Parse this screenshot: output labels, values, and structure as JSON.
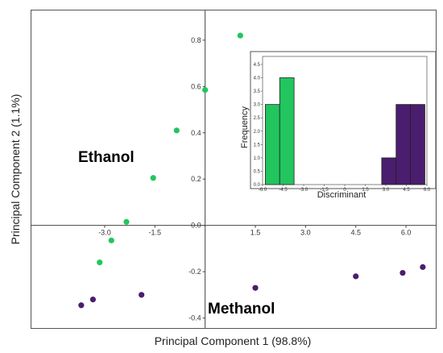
{
  "chart_data": [
    {
      "type": "scatter",
      "xlabel": "Principal Component 1 (98.8%)",
      "ylabel": "Principal Component 2 (1.1%)",
      "xlim": [
        -5.2,
        6.9
      ],
      "ylim": [
        -0.445,
        0.93
      ],
      "x_ticks": [
        {
          "value": -3.0,
          "label": "-3.0"
        },
        {
          "value": -1.5,
          "label": "-1.5"
        },
        {
          "value": 1.5,
          "label": "1.5"
        },
        {
          "value": 3.0,
          "label": "3.0"
        },
        {
          "value": 4.5,
          "label": "4.5"
        },
        {
          "value": 6.0,
          "label": "6.0"
        }
      ],
      "y_ticks": [
        {
          "value": 0.8,
          "label": "0.8"
        },
        {
          "value": 0.6,
          "label": "0.6"
        },
        {
          "value": 0.4,
          "label": "0.4"
        },
        {
          "value": 0.2,
          "label": "0.2"
        },
        {
          "value": 0.0,
          "label": "0.0"
        },
        {
          "value": -0.2,
          "label": "-0.2"
        },
        {
          "value": -0.4,
          "label": "-0.4"
        }
      ],
      "series": [
        {
          "name": "Ethanol",
          "color": "#22c55e",
          "points": [
            {
              "x": 1.05,
              "y": 0.82
            },
            {
              "x": 0.0,
              "y": 0.585
            },
            {
              "x": -0.85,
              "y": 0.41
            },
            {
              "x": -1.55,
              "y": 0.205
            },
            {
              "x": -2.35,
              "y": 0.015
            },
            {
              "x": -2.8,
              "y": -0.065
            },
            {
              "x": -3.15,
              "y": -0.16
            }
          ]
        },
        {
          "name": "Methanol",
          "color": "#4a1d6e",
          "points": [
            {
              "x": -3.7,
              "y": -0.345
            },
            {
              "x": -3.35,
              "y": -0.32
            },
            {
              "x": -1.9,
              "y": -0.3
            },
            {
              "x": 1.5,
              "y": -0.27
            },
            {
              "x": 4.5,
              "y": -0.22
            },
            {
              "x": 5.9,
              "y": -0.205
            },
            {
              "x": 6.5,
              "y": -0.18
            }
          ]
        }
      ],
      "group_labels": [
        {
          "text": "Ethanol",
          "color": "#22c55e"
        },
        {
          "text": "Methanol",
          "color": "#4a1d6e"
        }
      ]
    },
    {
      "type": "bar",
      "subtype": "histogram",
      "xlabel": "Discriminant",
      "ylabel": "Frequency",
      "xlim": [
        -6.0,
        6.0
      ],
      "ylim": [
        0,
        4.8
      ],
      "x_ticks": [
        "-6.0",
        "-4.5",
        "-3.0",
        "-1.5",
        "0",
        "1.5",
        "3.0",
        "4.5",
        "6.0"
      ],
      "y_ticks": [
        "0.0",
        "0.5",
        "1.0",
        "1.5",
        "2.0",
        "2.5",
        "3.0",
        "3.5",
        "4.0",
        "4.5"
      ],
      "bins": [
        {
          "start": -5.8,
          "end": -4.75,
          "value": 3,
          "group": "Ethanol"
        },
        {
          "start": -4.75,
          "end": -3.7,
          "value": 4,
          "group": "Ethanol"
        },
        {
          "start": 2.7,
          "end": 3.75,
          "value": 1,
          "group": "Methanol"
        },
        {
          "start": 3.75,
          "end": 4.8,
          "value": 3,
          "group": "Methanol"
        },
        {
          "start": 4.8,
          "end": 5.85,
          "value": 3,
          "group": "Methanol"
        }
      ],
      "colors": {
        "Ethanol": "#22c55e",
        "Methanol": "#4a1d6e"
      }
    }
  ]
}
